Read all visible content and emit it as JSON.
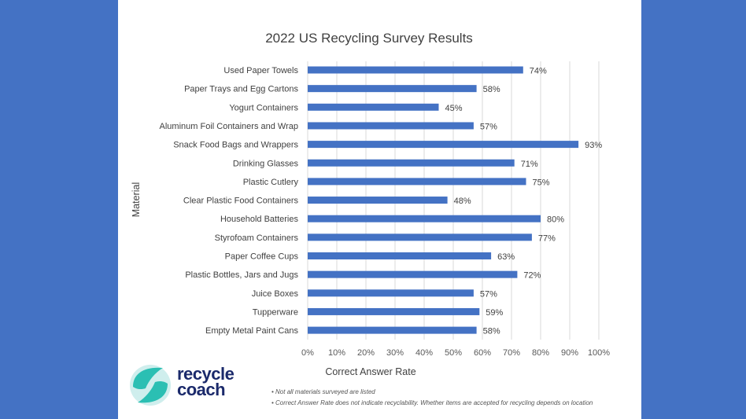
{
  "chart_data": {
    "type": "bar",
    "orientation": "horizontal",
    "title": "2022 US Recycling Survey Results",
    "xlabel": "Correct Answer Rate",
    "ylabel": "Material",
    "xlim": [
      0,
      100
    ],
    "x_ticks": [
      "0%",
      "10%",
      "20%",
      "30%",
      "40%",
      "50%",
      "60%",
      "70%",
      "80%",
      "90%",
      "100%"
    ],
    "grid": true,
    "bar_color": "#4472c4",
    "categories": [
      "Used Paper Towels",
      "Paper Trays and Egg Cartons",
      "Yogurt Containers",
      "Aluminum Foil Containers and Wrap",
      "Snack Food Bags and Wrappers",
      "Drinking Glasses",
      "Plastic Cutlery",
      "Clear Plastic Food Containers",
      "Household Batteries",
      "Styrofoam Containers",
      "Paper Coffee Cups",
      "Plastic Bottles, Jars and Jugs",
      "Juice Boxes",
      "Tupperware",
      "Empty Metal Paint Cans"
    ],
    "values": [
      74,
      58,
      45,
      57,
      93,
      71,
      75,
      48,
      80,
      77,
      63,
      72,
      57,
      59,
      58
    ],
    "data_labels": [
      "74%",
      "58%",
      "45%",
      "57%",
      "93%",
      "71%",
      "75%",
      "48%",
      "80%",
      "77%",
      "63%",
      "72%",
      "57%",
      "59%",
      "58%"
    ]
  },
  "footnotes": [
    "Not all materials surveyed are listed",
    "Correct Answer Rate does not indicate recyclability. Whether items are accepted for recycling depends on location"
  ],
  "logo": {
    "text_line1": "recycle",
    "text_line2": "coach"
  },
  "colors": {
    "background": "#4472c4",
    "logo_teal": "#2bbfb3",
    "logo_text": "#1b2a6b"
  }
}
